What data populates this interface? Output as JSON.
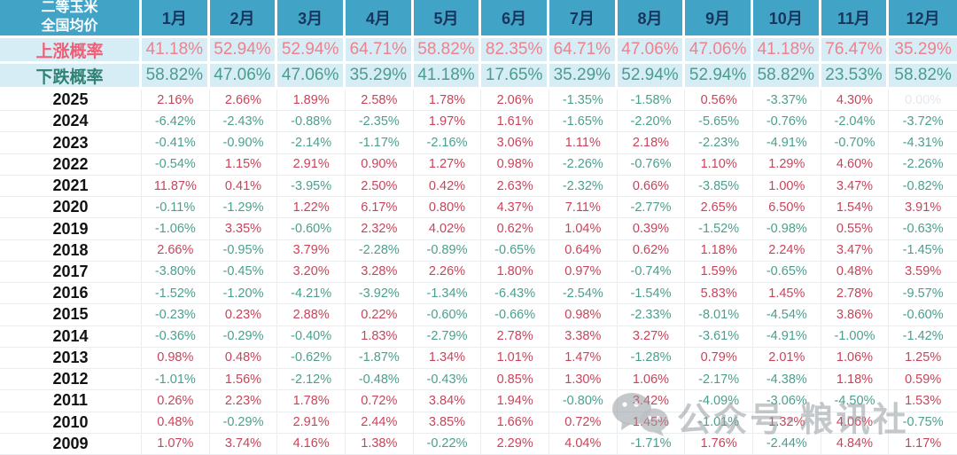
{
  "chart_data": {
    "type": "table",
    "title": "二等玉米 全国均价",
    "corner_header": [
      "二等玉米",
      "全国均价"
    ],
    "months": [
      "1月",
      "2月",
      "3月",
      "4月",
      "5月",
      "6月",
      "7月",
      "8月",
      "9月",
      "10月",
      "11月",
      "12月"
    ],
    "up_probability": {
      "label": "上涨概率",
      "values": [
        "41.18%",
        "52.94%",
        "52.94%",
        "64.71%",
        "58.82%",
        "82.35%",
        "64.71%",
        "47.06%",
        "47.06%",
        "41.18%",
        "76.47%",
        "35.29%"
      ]
    },
    "down_probability": {
      "label": "下跌概率",
      "values": [
        "58.82%",
        "47.06%",
        "47.06%",
        "35.29%",
        "41.18%",
        "17.65%",
        "35.29%",
        "52.94%",
        "52.94%",
        "58.82%",
        "23.53%",
        "58.82%"
      ]
    },
    "years": [
      {
        "year": "2025",
        "values": [
          "2.16%",
          "2.66%",
          "1.89%",
          "2.58%",
          "1.78%",
          "2.06%",
          "-1.35%",
          "-1.58%",
          "0.56%",
          "-3.37%",
          "4.30%",
          "0.00%"
        ]
      },
      {
        "year": "2024",
        "values": [
          "-6.42%",
          "-2.43%",
          "-0.88%",
          "-2.35%",
          "1.97%",
          "1.61%",
          "-1.65%",
          "-2.20%",
          "-5.65%",
          "-0.76%",
          "-2.04%",
          "-3.72%"
        ]
      },
      {
        "year": "2023",
        "values": [
          "-0.41%",
          "-0.90%",
          "-2.14%",
          "-1.17%",
          "-2.16%",
          "3.06%",
          "1.11%",
          "2.18%",
          "-2.23%",
          "-4.91%",
          "-0.70%",
          "-4.31%"
        ]
      },
      {
        "year": "2022",
        "values": [
          "-0.54%",
          "1.15%",
          "2.91%",
          "0.90%",
          "1.27%",
          "0.98%",
          "-2.26%",
          "-0.76%",
          "1.10%",
          "1.29%",
          "4.60%",
          "-2.26%"
        ]
      },
      {
        "year": "2021",
        "values": [
          "11.87%",
          "0.41%",
          "-3.95%",
          "2.50%",
          "0.42%",
          "2.63%",
          "-2.32%",
          "0.66%",
          "-3.85%",
          "1.00%",
          "3.47%",
          "-0.82%"
        ]
      },
      {
        "year": "2020",
        "values": [
          "-0.11%",
          "-1.29%",
          "1.22%",
          "6.17%",
          "0.80%",
          "4.37%",
          "7.11%",
          "-2.77%",
          "2.65%",
          "6.50%",
          "1.54%",
          "3.91%"
        ]
      },
      {
        "year": "2019",
        "values": [
          "-1.06%",
          "3.35%",
          "-0.60%",
          "2.32%",
          "4.02%",
          "0.62%",
          "1.04%",
          "0.39%",
          "-1.52%",
          "-0.98%",
          "0.55%",
          "-0.63%"
        ]
      },
      {
        "year": "2018",
        "values": [
          "2.66%",
          "-0.95%",
          "3.79%",
          "-2.28%",
          "-0.89%",
          "-0.65%",
          "0.64%",
          "0.62%",
          "1.18%",
          "2.24%",
          "3.47%",
          "-1.45%"
        ]
      },
      {
        "year": "2017",
        "values": [
          "-3.80%",
          "-0.45%",
          "3.20%",
          "3.28%",
          "2.26%",
          "1.80%",
          "0.97%",
          "-0.74%",
          "1.59%",
          "-0.65%",
          "0.48%",
          "3.59%"
        ]
      },
      {
        "year": "2016",
        "values": [
          "-1.52%",
          "-1.20%",
          "-4.21%",
          "-3.92%",
          "-1.34%",
          "-6.43%",
          "-2.54%",
          "-1.54%",
          "5.83%",
          "1.45%",
          "2.78%",
          "-9.57%"
        ]
      },
      {
        "year": "2015",
        "values": [
          "-0.23%",
          "0.23%",
          "2.88%",
          "0.22%",
          "-0.60%",
          "-0.66%",
          "0.98%",
          "-2.33%",
          "-8.01%",
          "-4.54%",
          "3.86%",
          "-0.60%"
        ]
      },
      {
        "year": "2014",
        "values": [
          "-0.36%",
          "-0.29%",
          "-0.40%",
          "1.83%",
          "-2.79%",
          "2.78%",
          "3.38%",
          "3.27%",
          "-3.61%",
          "-4.91%",
          "-1.00%",
          "-1.42%"
        ]
      },
      {
        "year": "2013",
        "values": [
          "0.98%",
          "0.48%",
          "-0.62%",
          "-1.87%",
          "1.34%",
          "1.01%",
          "1.47%",
          "-1.28%",
          "0.79%",
          "2.01%",
          "1.06%",
          "1.25%"
        ]
      },
      {
        "year": "2012",
        "values": [
          "-1.01%",
          "1.56%",
          "-2.12%",
          "-0.48%",
          "-0.43%",
          "0.85%",
          "1.30%",
          "1.06%",
          "-2.17%",
          "-4.38%",
          "1.18%",
          "0.59%"
        ]
      },
      {
        "year": "2011",
        "values": [
          "0.26%",
          "2.23%",
          "1.78%",
          "0.72%",
          "3.84%",
          "1.94%",
          "-0.80%",
          "3.42%",
          "-4.09%",
          "-3.06%",
          "-4.50%",
          "1.53%"
        ]
      },
      {
        "year": "2010",
        "values": [
          "0.48%",
          "-0.29%",
          "2.91%",
          "2.44%",
          "3.85%",
          "1.66%",
          "0.72%",
          "1.45%",
          "-1.01%",
          "1.32%",
          "4.06%",
          "-0.75%"
        ]
      },
      {
        "year": "2009",
        "values": [
          "1.07%",
          "3.74%",
          "4.16%",
          "1.38%",
          "-0.22%",
          "2.29%",
          "4.04%",
          "-1.71%",
          "1.76%",
          "-2.44%",
          "4.84%",
          "1.17%"
        ]
      }
    ],
    "layout": {
      "grid": true,
      "positive_color": "#c9445a",
      "negative_color": "#4b9f8e",
      "zero_color": "#e4e7ea",
      "header_bg": "#41a3c6",
      "probability_bg": "#d6edf6",
      "month_text_color": "#17365d"
    }
  },
  "watermark": {
    "text": "公众号·粮讯社"
  }
}
